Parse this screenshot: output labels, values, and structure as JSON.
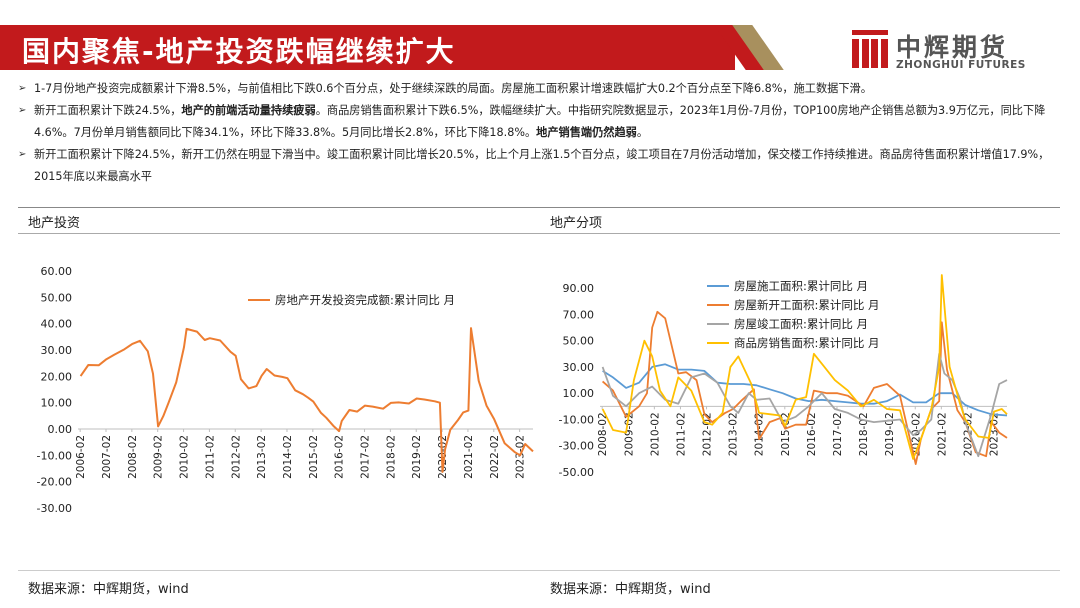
{
  "header": {
    "title": "国内聚焦-地产投资跌幅继续扩大",
    "logo_cn": "中辉期货",
    "logo_en": "ZHONGHUI FUTURES"
  },
  "bullets": [
    [
      {
        "text": "1-7月份地产投资完成额累计下滑8.5%，与前值相比下跌0.6个百分点，处于继续深跌的局面。房屋施工面积累计增速跌幅扩大0.2个百分点至下降6.8%，施工数据下滑。",
        "bold": false
      }
    ],
    [
      {
        "text": "新开工面积累计下跌24.5%，",
        "bold": false
      },
      {
        "text": "地产的前端活动量持续疲弱",
        "bold": true
      },
      {
        "text": "。商品房销售面积累计下跌6.5%，跌幅继续扩大。中指研究院数据显示，2023年1月份-7月份，TOP100房地产企销售总额为3.9万亿元，同比下降4.6%。7月份单月销售额同比下降34.1%，环比下降33.8%。5月同比增长2.8%，环比下降18.8%。",
        "bold": false
      },
      {
        "text": "地产销售端仍然趋弱",
        "bold": true
      },
      {
        "text": "。",
        "bold": false
      }
    ],
    [
      {
        "text": "新开工面积累计下降24.5%，新开工仍然在明显下滑当中。竣工面积累计同比增长20.5%，比上个月上涨1.5个百分点，竣工项目在7月份活动增加，保交楼工作持续推进。商品房待售面积累计增值17.9%，2015年底以来最高水平",
        "bold": false
      }
    ]
  ],
  "left_panel": {
    "title": "地产投资",
    "source": "数据来源：中辉期货，wind"
  },
  "right_panel": {
    "title": "地产分项",
    "source": "数据来源：中辉期货，wind"
  },
  "chart_data": [
    {
      "type": "line",
      "ylim": [
        -30,
        60
      ],
      "yticks": [
        "60.00",
        "50.00",
        "40.00",
        "30.00",
        "20.00",
        "10.00",
        "0.00",
        "-10.00",
        "-20.00",
        "-30.00"
      ],
      "xticks": [
        "2006-02",
        "2007-02",
        "2008-02",
        "2009-02",
        "2010-02",
        "2011-02",
        "2012-02",
        "2013-02",
        "2014-02",
        "2015-02",
        "2016-02",
        "2017-02",
        "2018-02",
        "2019-02",
        "2020-02",
        "2021-02",
        "2022-02",
        "2023-02"
      ],
      "xrange": [
        2006.0,
        2023.6
      ],
      "series": [
        {
          "name": "房地产开发投资完成额:累计同比  月",
          "color": "#ed7d31",
          "x": [
            2006.1,
            2006.4,
            2006.8,
            2007.1,
            2007.4,
            2007.8,
            2008.1,
            2008.4,
            2008.7,
            2008.9,
            2009.1,
            2009.3,
            2009.5,
            2009.8,
            2010.1,
            2010.2,
            2010.6,
            2010.9,
            2011.1,
            2011.5,
            2011.9,
            2012.1,
            2012.3,
            2012.6,
            2012.9,
            2013.1,
            2013.3,
            2013.6,
            2013.9,
            2014.1,
            2014.4,
            2014.7,
            2014.9,
            2015.1,
            2015.4,
            2015.6,
            2015.9,
            2016.1,
            2016.2,
            2016.5,
            2016.8,
            2017.1,
            2017.4,
            2017.8,
            2018.1,
            2018.4,
            2018.8,
            2019.1,
            2019.4,
            2019.8,
            2020.0,
            2020.1,
            2020.2,
            2020.4,
            2020.7,
            2020.9,
            2021.1,
            2021.2,
            2021.5,
            2021.8,
            2022.1,
            2022.5,
            2022.9,
            2023.1,
            2023.3,
            2023.6
          ],
          "y": [
            20.1,
            24.3,
            24.2,
            26.5,
            28.2,
            30.3,
            32.3,
            33.5,
            29.5,
            21.0,
            1.0,
            4.9,
            9.9,
            17.7,
            31.1,
            38.0,
            37.0,
            33.8,
            34.5,
            33.6,
            29.3,
            27.8,
            18.9,
            15.4,
            16.3,
            20.2,
            22.8,
            20.3,
            19.8,
            19.3,
            14.7,
            13.2,
            11.9,
            10.4,
            6.1,
            4.3,
            1.0,
            -0.8,
            3.0,
            7.2,
            6.6,
            8.9,
            8.5,
            7.7,
            9.9,
            10.1,
            9.7,
            11.6,
            11.2,
            10.5,
            10.0,
            -16.3,
            -7.7,
            -0.3,
            3.4,
            6.3,
            7.0,
            38.3,
            18.3,
            8.9,
            3.7,
            -5.4,
            -8.8,
            -10.0,
            -5.7,
            -8.5
          ]
        }
      ]
    },
    {
      "type": "line",
      "ylim": [
        -50,
        100
      ],
      "yticks": [
        "90.00",
        "70.00",
        "50.00",
        "30.00",
        "10.00",
        "-10.00",
        "-30.00",
        "-50.00"
      ],
      "xticks": [
        "2008-02",
        "2009-02",
        "2010-02",
        "2011-02",
        "2012-02",
        "2013-02",
        "2014-02",
        "2015-02",
        "2016-02",
        "2017-02",
        "2018-02",
        "2019-02",
        "2020-02",
        "2021-02",
        "2022-02",
        "2023-02"
      ],
      "xrange": [
        2008.0,
        2023.6
      ],
      "series": [
        {
          "name": "房屋施工面积:累计同比  月",
          "color": "#5b9bd5",
          "x": [
            2008.1,
            2008.5,
            2009.0,
            2009.5,
            2010.0,
            2010.5,
            2011.0,
            2011.5,
            2012.0,
            2012.5,
            2013.0,
            2013.5,
            2014.0,
            2014.5,
            2015.0,
            2015.5,
            2016.0,
            2016.5,
            2017.0,
            2017.5,
            2018.0,
            2018.5,
            2019.0,
            2019.5,
            2020.0,
            2020.5,
            2021.0,
            2021.5,
            2022.0,
            2022.5,
            2023.0,
            2023.6
          ],
          "y": [
            27,
            22,
            14,
            18,
            30,
            32,
            28,
            28,
            27,
            18,
            17,
            17,
            16,
            13,
            10,
            6,
            4,
            5,
            4,
            3,
            2,
            2,
            4,
            9,
            3,
            3,
            10,
            10,
            1,
            -3,
            -6,
            -7
          ]
        },
        {
          "name": "房屋新开工面积:累计同比  月",
          "color": "#ed7d31",
          "x": [
            2008.1,
            2008.5,
            2009.0,
            2009.5,
            2009.8,
            2010.0,
            2010.2,
            2010.5,
            2011.0,
            2011.3,
            2011.7,
            2012.0,
            2012.3,
            2012.8,
            2013.1,
            2013.4,
            2013.9,
            2014.1,
            2014.5,
            2014.9,
            2015.1,
            2015.5,
            2015.9,
            2016.2,
            2016.7,
            2017.1,
            2017.5,
            2018.1,
            2018.5,
            2019.0,
            2019.5,
            2020.1,
            2020.3,
            2020.7,
            2021.0,
            2021.1,
            2021.3,
            2021.7,
            2022.0,
            2022.4,
            2022.8,
            2023.0,
            2023.3,
            2023.6
          ],
          "y": [
            19,
            12,
            -8,
            0,
            10,
            60,
            72,
            67,
            25,
            26,
            20,
            -6,
            -12,
            -5,
            -2,
            4,
            13,
            -25,
            -12,
            -9,
            -17,
            -14,
            -14,
            12,
            10,
            10,
            8,
            0,
            14,
            17,
            8,
            -44,
            -25,
            -2,
            4,
            64,
            28,
            -3,
            -12,
            -35,
            -38,
            -12,
            -20,
            -24
          ]
        },
        {
          "name": "房屋竣工面积:累计同比  月",
          "color": "#a5a5a5",
          "x": [
            2008.1,
            2008.5,
            2009.0,
            2009.5,
            2010.0,
            2010.5,
            2011.0,
            2011.5,
            2012.0,
            2012.5,
            2013.0,
            2013.3,
            2013.7,
            2014.0,
            2014.5,
            2015.0,
            2015.5,
            2016.0,
            2016.5,
            2017.0,
            2017.5,
            2018.0,
            2018.5,
            2019.0,
            2019.5,
            2020.0,
            2020.3,
            2020.7,
            2021.0,
            2021.2,
            2021.5,
            2021.8,
            2022.0,
            2022.5,
            2023.0,
            2023.3,
            2023.6
          ],
          "y": [
            30,
            8,
            0,
            10,
            15,
            5,
            2,
            22,
            25,
            18,
            0,
            -5,
            10,
            5,
            6,
            -12,
            -8,
            0,
            10,
            -2,
            -5,
            -10,
            -12,
            -11,
            -10,
            -22,
            -18,
            -10,
            40,
            25,
            20,
            6,
            -12,
            -38,
            -6,
            17,
            20
          ]
        },
        {
          "name": "商品房销售面积:累计同比  月",
          "color": "#ffc000",
          "x": [
            2008.1,
            2008.5,
            2009.0,
            2009.3,
            2009.7,
            2010.0,
            2010.3,
            2010.7,
            2011.0,
            2011.5,
            2012.0,
            2012.3,
            2012.7,
            2013.0,
            2013.3,
            2013.8,
            2014.1,
            2014.5,
            2014.9,
            2015.1,
            2015.5,
            2015.9,
            2016.2,
            2016.6,
            2017.0,
            2017.5,
            2018.0,
            2018.5,
            2019.0,
            2019.5,
            2020.0,
            2020.3,
            2020.7,
            2021.0,
            2021.1,
            2021.4,
            2021.8,
            2022.0,
            2022.5,
            2022.9,
            2023.1,
            2023.4,
            2023.6
          ],
          "y": [
            -2,
            -18,
            -20,
            20,
            50,
            38,
            12,
            0,
            22,
            12,
            -12,
            -14,
            -5,
            30,
            38,
            17,
            -5,
            -6,
            -7,
            -15,
            5,
            7,
            40,
            30,
            20,
            12,
            0,
            5,
            -2,
            -3,
            -40,
            -25,
            -2,
            30,
            100,
            30,
            2,
            -10,
            -23,
            -24,
            -4,
            -2,
            -6
          ]
        }
      ]
    }
  ]
}
